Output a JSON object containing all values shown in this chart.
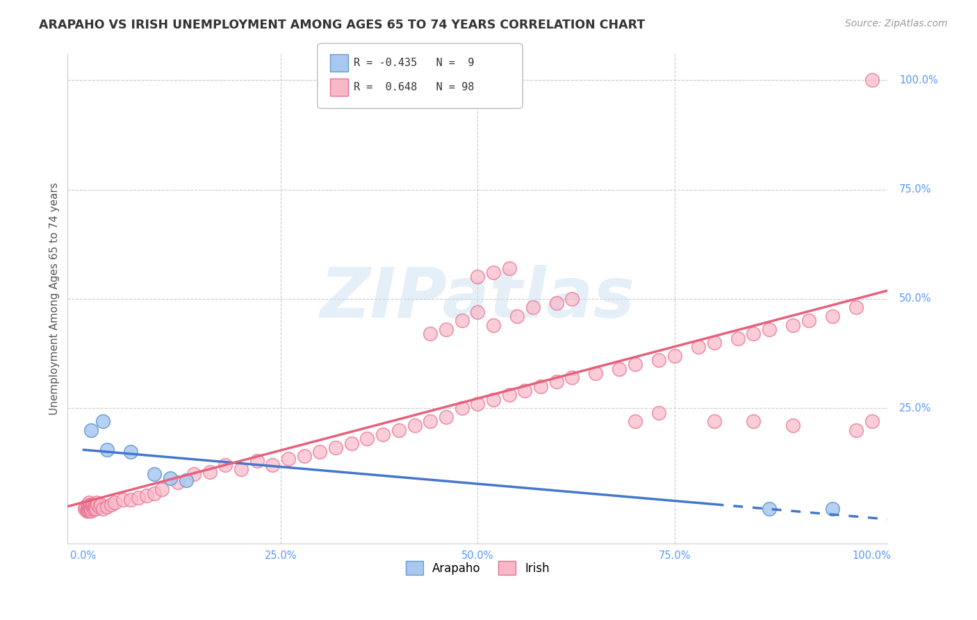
{
  "title": "ARAPAHO VS IRISH UNEMPLOYMENT AMONG AGES 65 TO 74 YEARS CORRELATION CHART",
  "source": "Source: ZipAtlas.com",
  "ylabel": "Unemployment Among Ages 65 to 74 years",
  "arapaho_color": "#a8c8f0",
  "arapaho_edge": "#6699cc",
  "irish_color": "#f8b8c8",
  "irish_edge": "#e87090",
  "arapaho_line_color": "#4477cc",
  "irish_line_color": "#e8607a",
  "watermark_color": "#cce0f0",
  "watermark": "ZIPatlas",
  "bg_color": "#ffffff",
  "grid_color": "#cccccc",
  "title_color": "#333333",
  "axis_label_color": "#555555",
  "tick_color": "#5599ff",
  "arapaho_R": -0.435,
  "arapaho_N": 9,
  "irish_R": 0.648,
  "irish_N": 98,
  "arapaho_x": [
    1.0,
    2.5,
    3.0,
    6.0,
    9.0,
    11.0,
    13.0,
    87.0,
    95.0
  ],
  "arapaho_y": [
    20.0,
    22.0,
    15.5,
    15.0,
    10.0,
    9.0,
    8.5,
    2.0,
    2.0
  ],
  "irish_x": [
    0.2,
    0.3,
    0.4,
    0.5,
    0.5,
    0.6,
    0.6,
    0.7,
    0.7,
    0.8,
    0.8,
    0.9,
    0.9,
    1.0,
    1.0,
    1.1,
    1.1,
    1.2,
    1.2,
    1.3,
    1.4,
    1.5,
    1.5,
    1.6,
    1.7,
    1.8,
    2.0,
    2.2,
    2.5,
    3.0,
    3.5,
    4.0,
    5.0,
    6.0,
    7.0,
    8.0,
    9.0,
    10.0,
    12.0,
    14.0,
    16.0,
    18.0,
    20.0,
    22.0,
    24.0,
    26.0,
    28.0,
    30.0,
    32.0,
    34.0,
    36.0,
    38.0,
    40.0,
    42.0,
    44.0,
    46.0,
    48.0,
    50.0,
    52.0,
    54.0,
    56.0,
    58.0,
    60.0,
    62.0,
    65.0,
    68.0,
    70.0,
    73.0,
    75.0,
    78.0,
    80.0,
    83.0,
    85.0,
    87.0,
    90.0,
    92.0,
    95.0,
    98.0,
    100.0,
    48.0,
    50.0,
    52.0,
    46.0,
    44.0,
    55.0,
    57.0,
    60.0,
    62.0,
    70.0,
    73.0,
    80.0,
    85.0,
    90.0,
    98.0,
    100.0,
    50.0,
    52.0,
    54.0
  ],
  "irish_y": [
    2.0,
    2.5,
    1.5,
    2.0,
    3.0,
    2.5,
    1.5,
    2.0,
    3.5,
    2.5,
    1.5,
    3.0,
    2.0,
    1.5,
    2.0,
    2.5,
    3.0,
    2.5,
    3.0,
    2.0,
    2.5,
    3.0,
    2.5,
    2.0,
    3.5,
    3.0,
    2.5,
    3.0,
    2.0,
    2.5,
    3.0,
    3.5,
    4.0,
    4.0,
    4.5,
    5.0,
    5.5,
    6.5,
    8.0,
    10.0,
    10.5,
    12.0,
    11.0,
    13.0,
    12.0,
    13.5,
    14.0,
    15.0,
    16.0,
    17.0,
    18.0,
    19.0,
    20.0,
    21.0,
    22.0,
    23.0,
    25.0,
    26.0,
    27.0,
    28.0,
    29.0,
    30.0,
    31.0,
    32.0,
    33.0,
    34.0,
    35.0,
    36.0,
    37.0,
    39.0,
    40.0,
    41.0,
    42.0,
    43.0,
    44.0,
    45.0,
    46.0,
    48.0,
    100.0,
    45.0,
    47.0,
    44.0,
    43.0,
    42.0,
    46.0,
    48.0,
    49.0,
    50.0,
    22.0,
    24.0,
    22.0,
    22.0,
    21.0,
    20.0,
    22.0,
    55.0,
    56.0,
    57.0
  ],
  "irish_line_x0": -2,
  "irish_line_x1": 102,
  "arapaho_line_x0": 0,
  "arapaho_line_x1": 102,
  "xlim": [
    -2,
    102
  ],
  "ylim": [
    -6,
    106
  ],
  "xtick_positions": [
    0,
    25,
    50,
    75,
    100
  ],
  "xtick_labels": [
    "0.0%",
    "25.0%",
    "50.0%",
    "75.0%",
    "100.0%"
  ],
  "ytick_positions": [
    25,
    50,
    75,
    100
  ],
  "ytick_labels": [
    "25.0%",
    "50.0%",
    "75.0%",
    "100.0%"
  ]
}
